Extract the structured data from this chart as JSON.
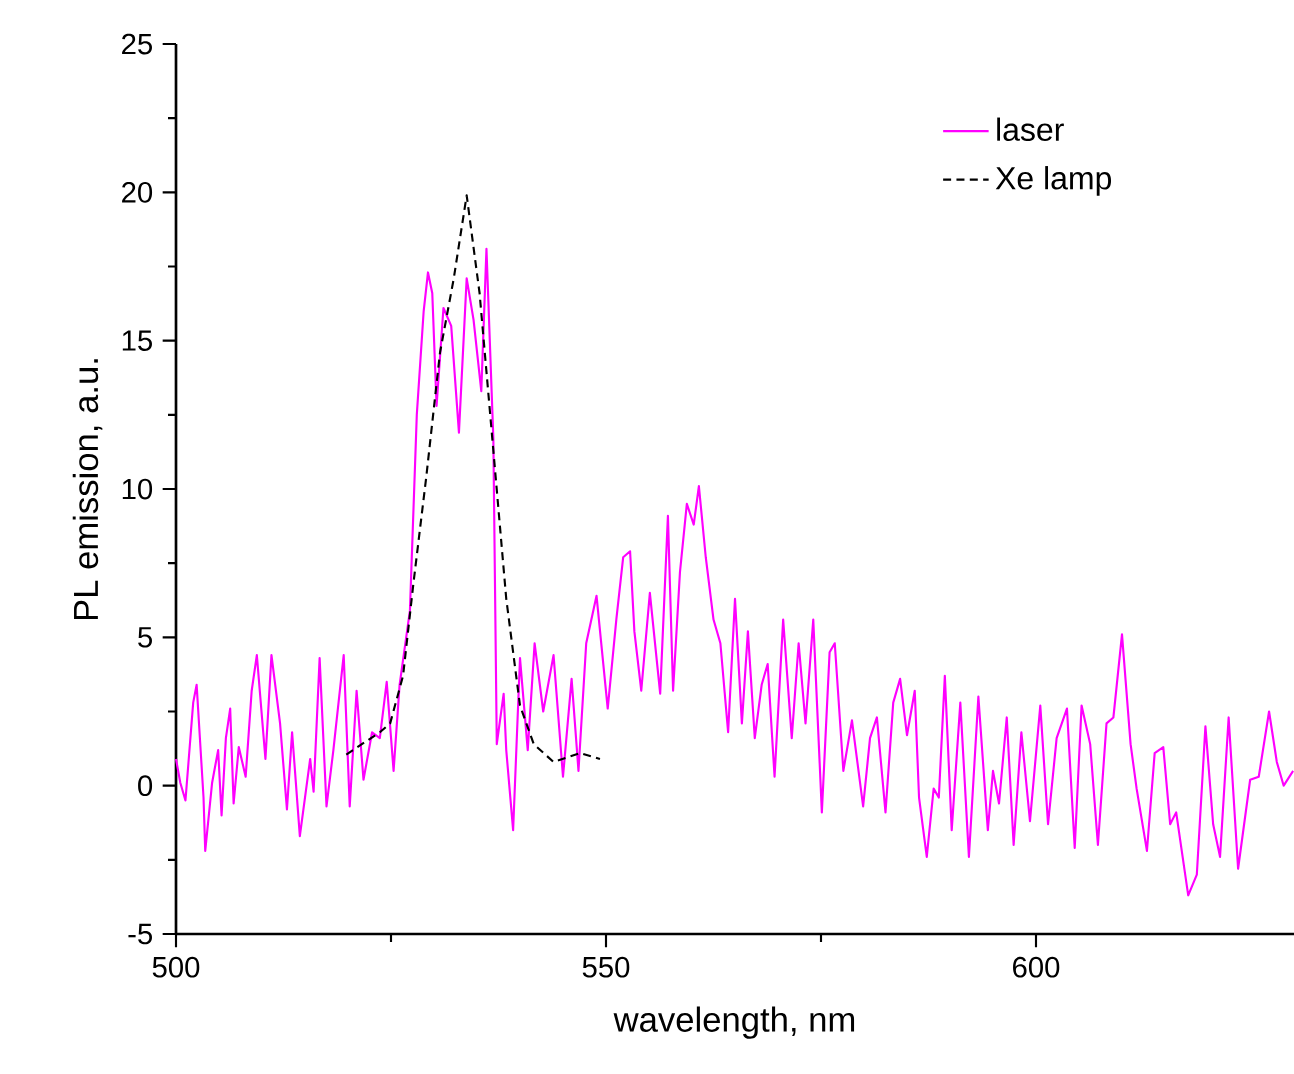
{
  "chart_data": {
    "type": "line",
    "xlabel": "wavelength, nm",
    "ylabel": "PL emission, a.u.",
    "xlim": [
      500,
      630
    ],
    "xticks": [
      500,
      550,
      600
    ],
    "ylim": [
      -5,
      25
    ],
    "yticks": [
      -5,
      0,
      5,
      10,
      15,
      20,
      25
    ],
    "legend": "top right",
    "grid": false,
    "series": [
      {
        "name": "laser",
        "color": "#ff00ff",
        "line_style": "solid",
        "x": [
          500,
          500.5,
          501.1,
          502,
          502.4,
          503.2,
          503.4,
          504.2,
          504.9,
          505.3,
          505.8,
          506.3,
          506.7,
          507.3,
          508.1,
          508.8,
          509.4,
          510.4,
          511.1,
          512.1,
          512.9,
          513.5,
          514.4,
          515.6,
          516,
          516.7,
          517.5,
          518.3,
          519.5,
          520.2,
          521,
          521.8,
          522.8,
          523.7,
          524.5,
          525.3,
          526,
          527.2,
          528,
          528.8,
          529.3,
          529.8,
          530.3,
          531.1,
          532,
          532.9,
          533.8,
          534.6,
          535.5,
          536.1,
          536.9,
          537.3,
          538.1,
          538.4,
          539.2,
          540,
          540.9,
          541.7,
          542.7,
          543.9,
          545,
          546,
          546.8,
          547.7,
          548.9,
          550.2,
          551.2,
          552,
          552.8,
          553.3,
          554.1,
          555.1,
          556.3,
          557.2,
          557.8,
          558.6,
          559.4,
          560.2,
          560.8,
          561.6,
          562.5,
          563.3,
          564.2,
          565,
          565.8,
          566.5,
          567.3,
          568.1,
          568.8,
          569.6,
          570.6,
          571.6,
          572.4,
          573.2,
          574.1,
          575.1,
          576,
          576.6,
          577.6,
          578.6,
          579.9,
          580.7,
          581.5,
          582.5,
          583.4,
          584.2,
          585,
          585.9,
          586.4,
          587.3,
          588.1,
          588.7,
          589.4,
          590.2,
          591.2,
          592.2,
          593.3,
          594.4,
          595,
          595.7,
          596.6,
          597.4,
          598.3,
          599.3,
          600.5,
          601.4,
          602.4,
          603.6,
          604.5,
          605.3,
          606.3,
          607.2,
          608.2,
          609,
          610,
          611,
          611.7,
          612.9,
          613.8,
          614.8,
          615.6,
          616.3,
          617.7,
          618.7,
          619.7,
          620.6,
          621.4,
          622.4,
          623.5,
          624.9,
          625.9,
          627.1,
          628,
          628.8,
          629.9
        ],
        "values": [
          0.9,
          0.1,
          -0.5,
          2.8,
          3.4,
          -0.4,
          -2.2,
          0.1,
          1.2,
          -1,
          1.6,
          2.6,
          -0.6,
          1.3,
          0.3,
          3.2,
          4.4,
          0.9,
          4.4,
          2.1,
          -0.8,
          1.8,
          -1.7,
          0.9,
          -0.2,
          4.3,
          -0.7,
          1.2,
          4.4,
          -0.7,
          3.2,
          0.2,
          1.8,
          1.6,
          3.5,
          0.5,
          3.4,
          5.9,
          12.5,
          16,
          17.3,
          16.6,
          12.8,
          16.1,
          15.5,
          11.9,
          17.1,
          15.7,
          13.3,
          18.1,
          11.7,
          1.4,
          3.1,
          1.2,
          -1.5,
          4.3,
          1.2,
          4.8,
          2.5,
          4.4,
          0.3,
          3.6,
          0.5,
          4.8,
          6.4,
          2.6,
          5.6,
          7.7,
          7.9,
          5.2,
          3.2,
          6.5,
          3.1,
          9.1,
          3.2,
          7.2,
          9.5,
          8.8,
          10.1,
          7.7,
          5.6,
          4.8,
          1.8,
          6.3,
          2.1,
          5.2,
          1.6,
          3.4,
          4.1,
          0.3,
          5.6,
          1.6,
          4.8,
          2.1,
          5.6,
          -0.9,
          4.5,
          4.8,
          0.5,
          2.2,
          -0.7,
          1.6,
          2.3,
          -0.9,
          2.8,
          3.6,
          1.7,
          3.2,
          -0.4,
          -2.4,
          -0.1,
          -0.4,
          3.7,
          -1.5,
          2.8,
          -2.4,
          3,
          -1.5,
          0.5,
          -0.6,
          2.3,
          -2,
          1.8,
          -1.2,
          2.7,
          -1.3,
          1.6,
          2.6,
          -2.1,
          2.7,
          1.4,
          -2,
          2.1,
          2.3,
          5.1,
          1.4,
          -0.1,
          -2.2,
          1.1,
          1.3,
          -1.3,
          -0.9,
          -3.7,
          -3,
          2,
          -1.3,
          -2.4,
          2.3,
          -2.8,
          0.2,
          0.3,
          2.5,
          0.8,
          0,
          0.5
        ]
      },
      {
        "name": "Xe lamp",
        "color": "#000000",
        "line_style": "dashed",
        "x": [
          519.8,
          523.7,
          524.9,
          526.4,
          527.6,
          529.1,
          530.7,
          532.3,
          533.8,
          535.3,
          536.9,
          538.4,
          540,
          541.6,
          543.9,
          547,
          549.3
        ],
        "values": [
          1.05,
          1.8,
          2.1,
          3.7,
          6.8,
          10.4,
          14.6,
          17.1,
          19.9,
          16.6,
          11.3,
          6.3,
          2.7,
          1.4,
          0.8,
          1.1,
          0.9
        ]
      }
    ]
  }
}
